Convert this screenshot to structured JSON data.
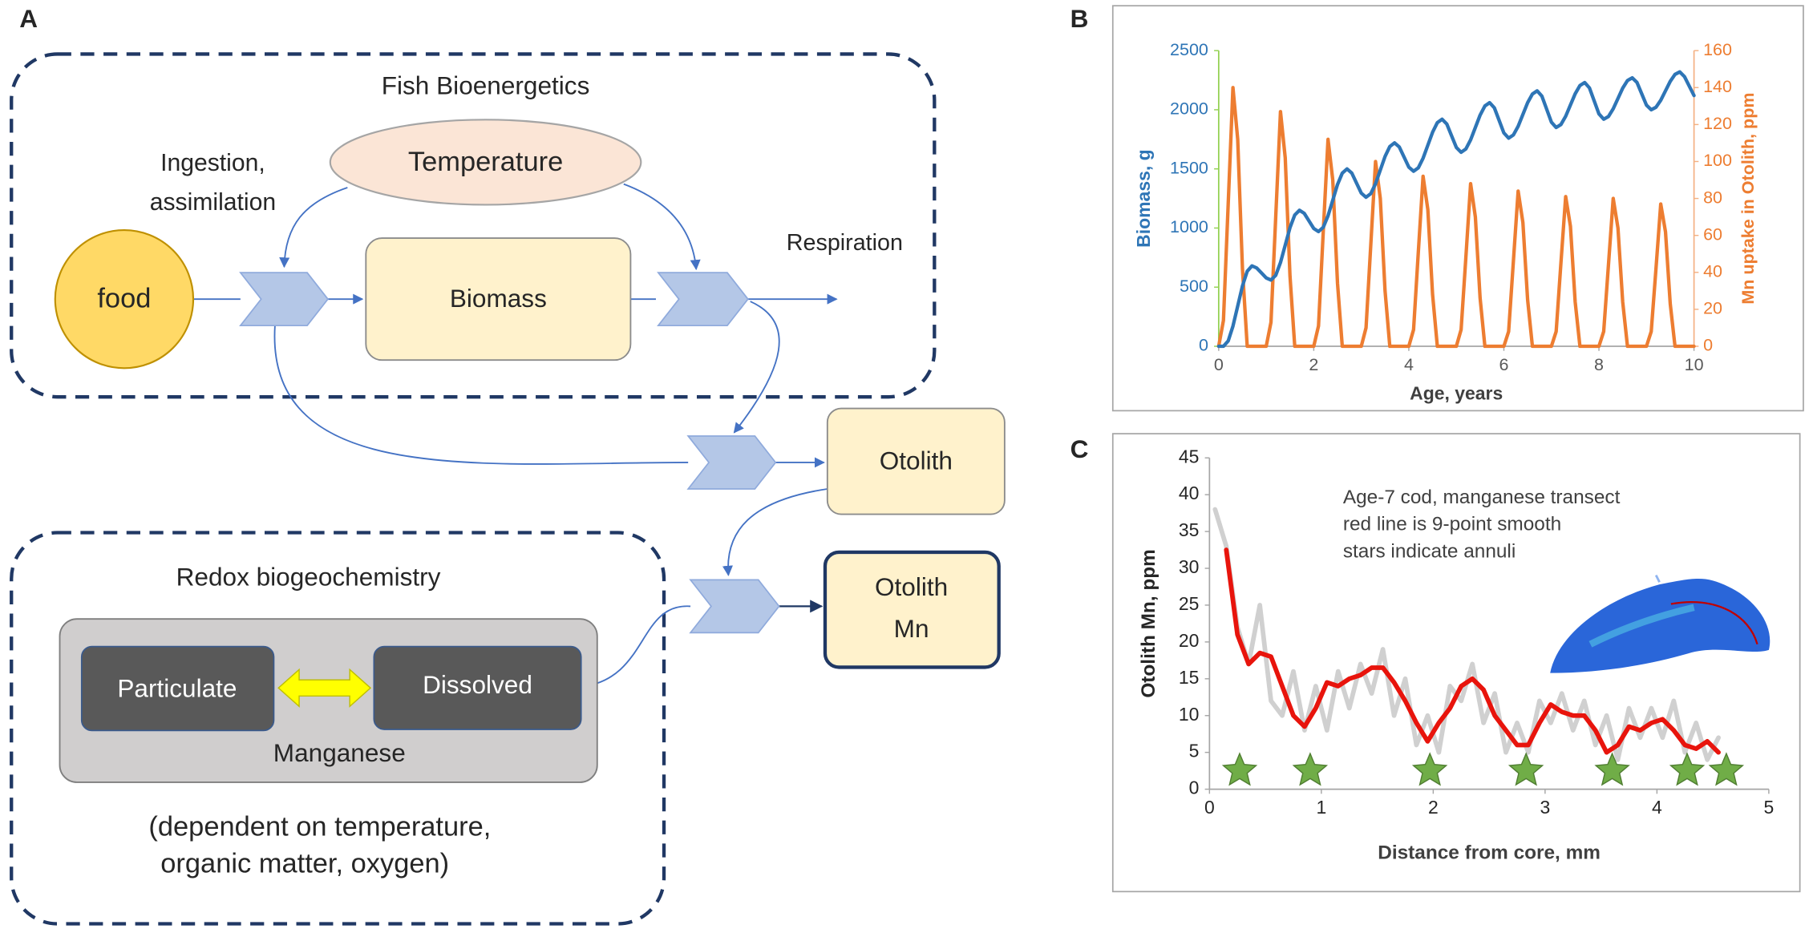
{
  "panel_labels": [
    "A",
    "B",
    "C"
  ],
  "diagram": {
    "fish_group": "Fish Bioenergetics",
    "temperature": "Temperature",
    "ingestion": [
      "Ingestion,",
      "assimilation"
    ],
    "food": "food",
    "biomass": "Biomass",
    "respiration": "Respiration",
    "otolith": "Otolith",
    "otolith_mn": [
      "Otolith",
      "Mn"
    ],
    "redox_group": "Redox biogeochemistry",
    "particulate": "Particulate",
    "dissolved": "Dissolved",
    "manganese": "Manganese",
    "note": [
      "(dependent on temperature,",
      "organic matter, oxygen)"
    ]
  },
  "chart_data": [
    {
      "type": "line",
      "xlabel": "Age, years",
      "ylabel": "Biomass, g",
      "y2label": "Mn uptake in Otolith, ppm",
      "xlim": [
        0,
        10
      ],
      "xticks": [
        0,
        2,
        4,
        6,
        8,
        10
      ],
      "ylim": [
        0,
        2500
      ],
      "yticks": [
        0,
        500,
        1000,
        1500,
        2000,
        2500
      ],
      "y2lim": [
        0,
        160
      ],
      "y2ticks": [
        0,
        20,
        40,
        60,
        80,
        100,
        120,
        140,
        160
      ],
      "x": [
        0,
        0.1,
        0.2,
        0.3,
        0.4,
        0.5,
        0.6,
        0.7,
        0.8,
        0.9,
        1,
        1.1,
        1.2,
        1.3,
        1.4,
        1.5,
        1.6,
        1.7,
        1.8,
        1.9,
        2,
        2.1,
        2.2,
        2.3,
        2.4,
        2.5,
        2.6,
        2.7,
        2.8,
        2.9,
        3,
        3.1,
        3.2,
        3.3,
        3.4,
        3.5,
        3.6,
        3.7,
        3.8,
        3.9,
        4,
        4.1,
        4.2,
        4.3,
        4.4,
        4.5,
        4.6,
        4.7,
        4.8,
        4.9,
        5,
        5.1,
        5.2,
        5.3,
        5.4,
        5.5,
        5.6,
        5.7,
        5.8,
        5.9,
        6,
        6.1,
        6.2,
        6.3,
        6.4,
        6.5,
        6.6,
        6.7,
        6.8,
        6.9,
        7,
        7.1,
        7.2,
        7.3,
        7.4,
        7.5,
        7.6,
        7.7,
        7.8,
        7.9,
        8,
        8.1,
        8.2,
        8.3,
        8.4,
        8.5,
        8.6,
        8.7,
        8.8,
        8.9,
        9,
        9.1,
        9.2,
        9.3,
        9.4,
        9.5,
        9.6,
        9.7,
        9.8,
        9.9,
        10
      ],
      "series": [
        {
          "color": "#ed7d31",
          "axis": "y2",
          "style": "line",
          "values": [
            0,
            14,
            77,
            140,
            112,
            42,
            0,
            0,
            0,
            0,
            0,
            13,
            70,
            127,
            102,
            38,
            0,
            0,
            0,
            0,
            0,
            11,
            62,
            112,
            90,
            34,
            0,
            0,
            0,
            0,
            0,
            10,
            55,
            100,
            80,
            30,
            0,
            0,
            0,
            0,
            0,
            9,
            51,
            92,
            74,
            28,
            0,
            0,
            0,
            0,
            0,
            9,
            48,
            88,
            70,
            26,
            0,
            0,
            0,
            0,
            0,
            8,
            46,
            84,
            67,
            25,
            0,
            0,
            0,
            0,
            0,
            8,
            45,
            81,
            65,
            24,
            0,
            0,
            0,
            0,
            0,
            8,
            44,
            80,
            64,
            24,
            0,
            0,
            0,
            0,
            0,
            8,
            42,
            77,
            62,
            23,
            0,
            0,
            0,
            0,
            0
          ]
        },
        {
          "color": "#2e75b6",
          "axis": "y",
          "style": "line",
          "values": [
            0,
            0,
            45,
            170,
            340,
            510,
            634,
            680,
            662,
            620,
            578,
            560,
            600,
            708,
            855,
            1003,
            1110,
            1150,
            1124,
            1060,
            996,
            970,
            1006,
            1103,
            1235,
            1368,
            1464,
            1500,
            1465,
            1380,
            1295,
            1260,
            1291,
            1375,
            1490,
            1605,
            1689,
            1720,
            1685,
            1600,
            1515,
            1480,
            1509,
            1590,
            1700,
            1810,
            1891,
            1920,
            1879,
            1780,
            1681,
            1640,
            1668,
            1745,
            1850,
            1955,
            2032,
            2060,
            2016,
            1910,
            1804,
            1760,
            1787,
            1860,
            1960,
            2060,
            2133,
            2160,
            2115,
            2005,
            1895,
            1850,
            1875,
            1945,
            2040,
            2135,
            2205,
            2230,
            2185,
            2075,
            1965,
            1920,
            1943,
            2008,
            2095,
            2183,
            2247,
            2270,
            2231,
            2135,
            2039,
            2000,
            2021,
            2080,
            2160,
            2240,
            2299,
            2320,
            2280,
            2200,
            2120
          ]
        }
      ]
    },
    {
      "type": "line",
      "xlabel": "Distance from core, mm",
      "ylabel": "Otolith Mn, ppm",
      "annotation": [
        "Age-7 cod, manganese transect",
        "red line is 9-point smooth",
        "stars indicate annuli"
      ],
      "xlim": [
        0,
        5
      ],
      "xticks": [
        0,
        1,
        2,
        3,
        4,
        5
      ],
      "ylim": [
        0,
        45
      ],
      "yticks": [
        0,
        5,
        10,
        15,
        20,
        25,
        30,
        35,
        40,
        45
      ],
      "series": [
        {
          "color": "#d0d0d0",
          "style": "line",
          "x": [
            0.05,
            0.15,
            0.25,
            0.35,
            0.45,
            0.55,
            0.65,
            0.75,
            0.85,
            0.95,
            1.05,
            1.15,
            1.25,
            1.35,
            1.45,
            1.55,
            1.65,
            1.75,
            1.85,
            1.95,
            2.05,
            2.15,
            2.25,
            2.35,
            2.45,
            2.55,
            2.65,
            2.75,
            2.85,
            2.95,
            3.05,
            3.15,
            3.25,
            3.35,
            3.45,
            3.55,
            3.65,
            3.75,
            3.85,
            3.95,
            4.05,
            4.15,
            4.25,
            4.35,
            4.45,
            4.55
          ],
          "values": [
            38,
            33,
            22,
            17,
            25,
            12,
            10,
            16,
            8,
            14,
            8,
            16,
            11,
            17,
            13,
            19,
            10,
            15,
            6,
            10,
            5,
            14,
            12,
            17,
            9,
            13,
            5,
            9,
            5,
            12,
            9,
            13,
            8,
            12,
            6,
            10,
            4,
            11,
            7,
            11,
            7,
            12,
            5,
            9,
            4,
            7
          ]
        },
        {
          "color": "#e8140c",
          "style": "line",
          "x": [
            0.15,
            0.25,
            0.35,
            0.45,
            0.55,
            0.65,
            0.75,
            0.85,
            0.95,
            1.05,
            1.15,
            1.25,
            1.35,
            1.45,
            1.55,
            1.65,
            1.75,
            1.85,
            1.95,
            2.05,
            2.15,
            2.25,
            2.35,
            2.45,
            2.55,
            2.65,
            2.75,
            2.85,
            2.95,
            3.05,
            3.15,
            3.25,
            3.35,
            3.45,
            3.55,
            3.65,
            3.75,
            3.85,
            3.95,
            4.05,
            4.15,
            4.25,
            4.35,
            4.45,
            4.55
          ],
          "values": [
            32.5,
            21,
            17,
            18.5,
            18,
            14,
            10,
            8.5,
            11,
            14.5,
            14,
            15,
            15.5,
            16.5,
            16.5,
            14.5,
            12,
            9,
            6.5,
            9,
            11,
            14,
            15,
            13.5,
            10,
            8,
            6,
            6,
            9,
            11.5,
            10.5,
            10,
            10,
            8,
            5,
            6,
            8.5,
            8,
            9,
            9.5,
            8,
            6,
            5.5,
            6.5,
            5
          ]
        },
        {
          "color": "#70ad47",
          "style": "star",
          "x": [
            0.27,
            0.9,
            1.97,
            2.83,
            3.6,
            4.27,
            4.62
          ],
          "values": [
            2.5,
            2.5,
            2.5,
            2.5,
            2.5,
            2.5,
            2.5
          ]
        }
      ]
    }
  ]
}
